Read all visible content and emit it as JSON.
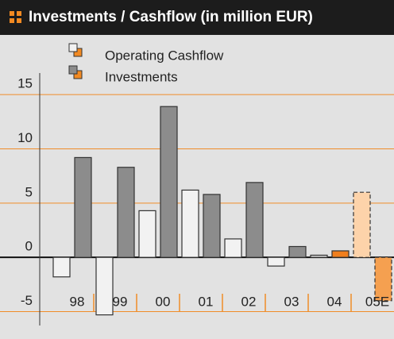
{
  "chart_data": {
    "type": "bar",
    "title": "Investments / Cashflow (in million EUR)",
    "categories": [
      "98",
      "99",
      "00",
      "01",
      "02",
      "03",
      "04",
      "05E"
    ],
    "series": [
      {
        "name": "Operating Cashflow",
        "color": "#f2f2f2",
        "colors": [
          "#f2f2f2",
          "#f2f2f2",
          "#f2f2f2",
          "#f2f2f2",
          "#f2f2f2",
          "#f2f2f2",
          "#d9d9d9",
          "#fdd3aa"
        ],
        "dashed": [
          false,
          false,
          false,
          false,
          false,
          false,
          false,
          true
        ],
        "values": [
          -1.8,
          -5.3,
          4.3,
          6.2,
          1.7,
          -0.8,
          0.2,
          6.0
        ]
      },
      {
        "name": "Investments",
        "color": "#8c8c8c",
        "colors": [
          "#8c8c8c",
          "#8c8c8c",
          "#8c8c8c",
          "#8c8c8c",
          "#8c8c8c",
          "#8c8c8c",
          "#f07f1e",
          "#f5a050"
        ],
        "dashed": [
          false,
          false,
          false,
          false,
          false,
          false,
          false,
          true
        ],
        "values": [
          9.2,
          8.3,
          13.9,
          5.8,
          6.9,
          1.0,
          0.6,
          -4.0
        ]
      }
    ],
    "ylim": [
      -6.5,
      20.5
    ],
    "yticks": [
      -5,
      0,
      5,
      10,
      15
    ],
    "grid": true,
    "grid_color": "#f08c28"
  }
}
